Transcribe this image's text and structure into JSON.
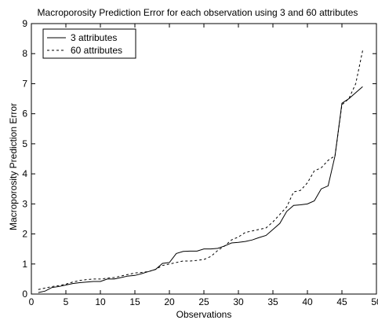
{
  "chart_data": {
    "type": "line",
    "title": "Macroporosity Prediction Error for each observation using 3 and 60 attributes",
    "xlabel": "Observations",
    "ylabel": "Macroporosity Prediction Error",
    "xlim": [
      0,
      50
    ],
    "ylim": [
      0,
      9
    ],
    "xticks": [
      0,
      5,
      10,
      15,
      20,
      25,
      30,
      35,
      40,
      45,
      50
    ],
    "yticks": [
      0,
      1,
      2,
      3,
      4,
      5,
      6,
      7,
      8,
      9
    ],
    "grid": false,
    "legend_position": "top-left",
    "x": [
      1,
      2,
      3,
      4,
      5,
      6,
      7,
      8,
      9,
      10,
      11,
      12,
      13,
      14,
      15,
      16,
      17,
      18,
      19,
      20,
      21,
      22,
      23,
      24,
      25,
      26,
      27,
      28,
      29,
      30,
      31,
      32,
      33,
      34,
      35,
      36,
      37,
      38,
      39,
      40,
      41,
      42,
      43,
      44,
      45,
      46,
      47,
      48
    ],
    "series": [
      {
        "name": "3 attributes",
        "style": "solid",
        "color": "#000000",
        "values": [
          0.05,
          0.1,
          0.22,
          0.25,
          0.3,
          0.35,
          0.38,
          0.4,
          0.42,
          0.42,
          0.5,
          0.5,
          0.55,
          0.6,
          0.62,
          0.68,
          0.75,
          0.82,
          1.02,
          1.05,
          1.35,
          1.42,
          1.43,
          1.43,
          1.5,
          1.5,
          1.52,
          1.6,
          1.7,
          1.72,
          1.75,
          1.8,
          1.88,
          1.95,
          2.15,
          2.35,
          2.75,
          2.95,
          2.97,
          3.0,
          3.1,
          3.5,
          3.6,
          4.6,
          6.35,
          6.5,
          6.7,
          6.9
        ]
      },
      {
        "name": "60 attributes",
        "style": "dashed",
        "color": "#000000",
        "values": [
          0.15,
          0.2,
          0.25,
          0.28,
          0.33,
          0.4,
          0.45,
          0.48,
          0.5,
          0.5,
          0.53,
          0.55,
          0.6,
          0.65,
          0.7,
          0.72,
          0.75,
          0.82,
          0.95,
          1.0,
          1.05,
          1.1,
          1.1,
          1.12,
          1.15,
          1.25,
          1.45,
          1.6,
          1.8,
          1.9,
          2.05,
          2.1,
          2.15,
          2.2,
          2.4,
          2.65,
          2.9,
          3.4,
          3.45,
          3.7,
          4.1,
          4.2,
          4.45,
          4.6,
          6.3,
          6.5,
          7.0,
          8.1
        ]
      }
    ]
  }
}
